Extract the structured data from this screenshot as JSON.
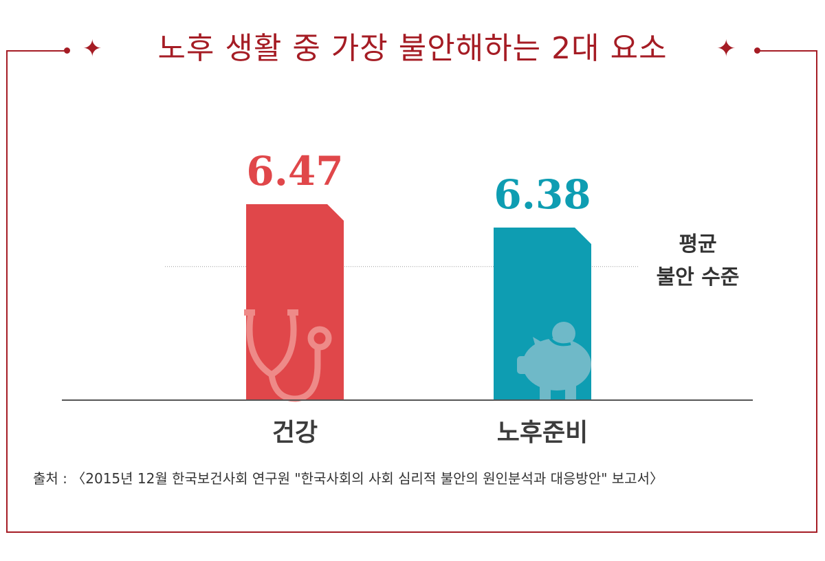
{
  "chart_data": {
    "type": "bar",
    "title": "노후 생활 중 가장 불안해하는 2대 요소",
    "categories": [
      "건강",
      "노후준비"
    ],
    "values": [
      6.47,
      6.38
    ],
    "value_labels": [
      "6.47",
      "6.38"
    ],
    "colors": [
      "#e0474a",
      "#0e9db2"
    ],
    "icons": [
      "stethoscope-icon",
      "piggy-bank-icon"
    ],
    "reference_line": {
      "label_line1": "평균",
      "label_line2": "불안 수준",
      "value": 6.23
    },
    "ylim": [
      5.716,
      6.6
    ],
    "grid": false,
    "xlabel": "",
    "ylabel": "",
    "source": "출처 : 〈2015년 12월 한국보건사회 연구원 \"한국사회의 사회 심리적 불안의 원인분석과 대응방안\" 보고서〉"
  },
  "accent_color": "#a51c24"
}
